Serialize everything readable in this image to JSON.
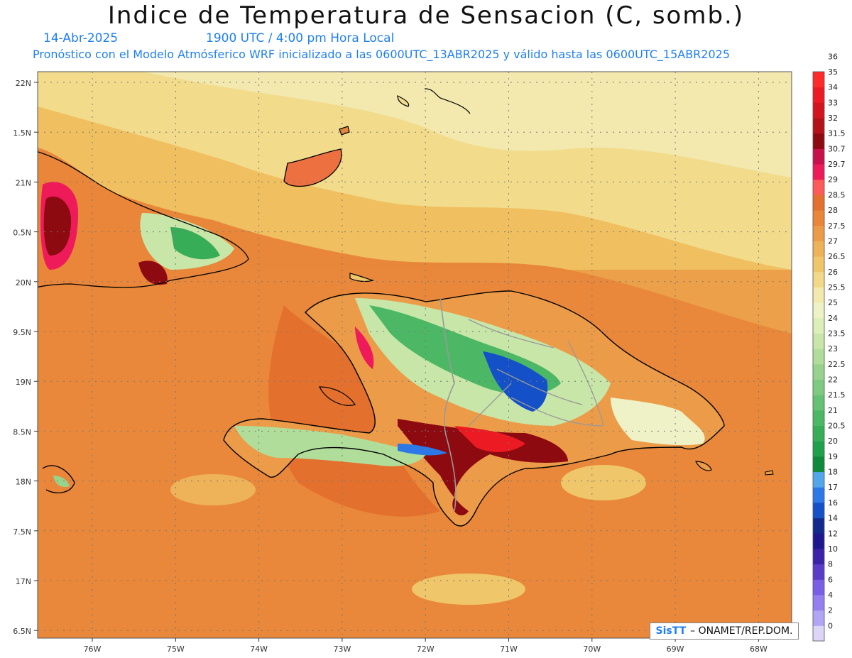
{
  "title": "Indice de Temperatura de Sensacion (C, somb.)",
  "date": "14-Abr-2025",
  "time": "1900 UTC / 4:00 pm Hora Local",
  "model_note": "Pronóstico con el Modelo Atmósferico WRF inicializado a las 0600UTC_13ABR2025 y válido hasta las  0600UTC_15ABR2025",
  "credit": {
    "logo": "SisTT",
    "text": "– ONAMET/REP.DOM."
  },
  "lat_labels": [
    "22N",
    "1.5N",
    "21N",
    "0.5N",
    "20N",
    "9.5N",
    "19N",
    "8.5N",
    "18N",
    "7.5N",
    "17N",
    "6.5N"
  ],
  "lon_labels": [
    "76W",
    "75W",
    "74W",
    "73W",
    "72W",
    "71W",
    "70W",
    "69W",
    "68W"
  ],
  "colorbar": {
    "colors": [
      "#dcd5f5",
      "#b3a5f5",
      "#957ff0",
      "#7a5fe6",
      "#5b3cc8",
      "#3c22a8",
      "#1e1890",
      "#122a8c",
      "#1450c8",
      "#2b78e6",
      "#52a6ea",
      "#0f8a3c",
      "#1fa04a",
      "#37ad58",
      "#4cb865",
      "#65c173",
      "#7ecb80",
      "#98d38e",
      "#b1dd9b",
      "#c8e6a8",
      "#dcefb6",
      "#eef2c6",
      "#f3e9ae",
      "#f2d98a",
      "#f0c66a",
      "#eeb259",
      "#ec9c48",
      "#e9863a",
      "#e47030",
      "#ff5a5a",
      "#ee1a5a",
      "#c8104c",
      "#8c0a10",
      "#b41218",
      "#d4141c",
      "#ec1a22",
      "#ff2a2a"
    ],
    "labels": [
      "0",
      "2",
      "4",
      "6",
      "8",
      "10",
      "12",
      "14",
      "16",
      "17",
      "18",
      "19",
      "20",
      "20.5",
      "21",
      "21.5",
      "22",
      "22.5",
      "23",
      "23.5",
      "24",
      "25",
      "25.5",
      "26",
      "26.5",
      "27",
      "27.5",
      "28",
      "28.5",
      "29",
      "29.7",
      "30.7",
      "31.5",
      "32",
      "33",
      "34",
      "35",
      "36"
    ]
  }
}
